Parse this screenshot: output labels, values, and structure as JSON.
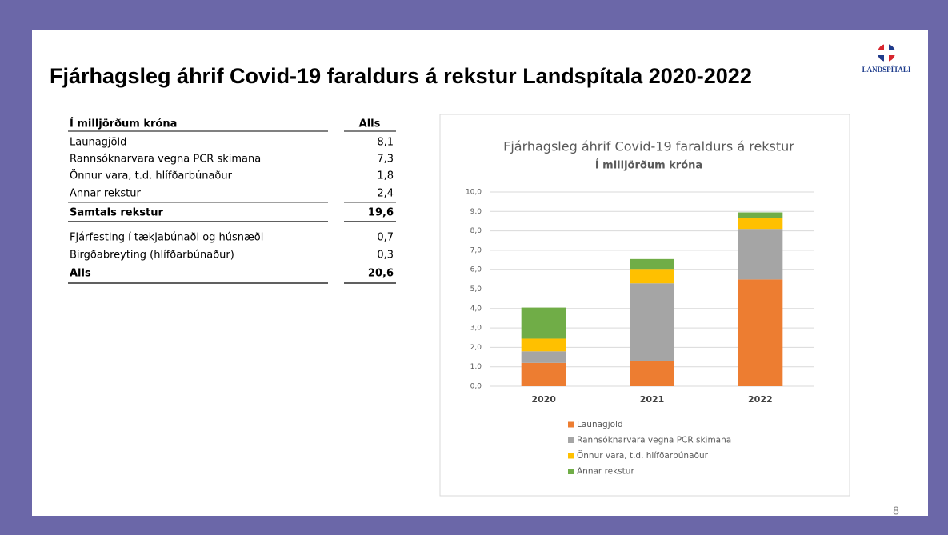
{
  "title": "Fjárhagsleg áhrif Covid-19 faraldurs á rekstur Landspítala 2020-2022",
  "logo": "LANDSPÍTALI",
  "page_number": "8",
  "table": {
    "header": [
      "Í milljörðum króna",
      "Alls"
    ],
    "rows": [
      [
        "Launagjöld",
        "8,1"
      ],
      [
        "Rannsóknarvara vegna PCR skimana",
        "7,3"
      ],
      [
        "Önnur vara, t.d. hlífðarbúnaður",
        "1,8"
      ],
      [
        "Annar rekstur",
        "2,4"
      ],
      [
        "Samtals rekstur",
        "19,6"
      ],
      [
        "Fjárfesting í tækjabúnaði og húsnæði",
        "0,7"
      ],
      [
        "Birgðabreyting (hlífðarbúnaður)",
        "0,3"
      ],
      [
        "Alls",
        "20,6"
      ]
    ]
  },
  "chart_data": {
    "type": "stacked_bar",
    "title": "Fjárhagsleg áhrif Covid-19 faraldurs á rekstur",
    "subtitle": "Í milljörðum króna",
    "categories": [
      "2020",
      "2021",
      "2022"
    ],
    "series": [
      {
        "name": "Launagjöld",
        "color": "#ed7d31",
        "values": [
          1.2,
          1.3,
          5.5
        ]
      },
      {
        "name": "Rannsóknarvara vegna PCR skimana",
        "color": "#a5a5a5",
        "values": [
          0.6,
          4.0,
          2.6
        ]
      },
      {
        "name": "Önnur vara, t.d. hlífðarbúnaður",
        "color": "#ffc000",
        "values": [
          0.65,
          0.7,
          0.55
        ]
      },
      {
        "name": "Annar rekstur",
        "color": "#70ad47",
        "values": [
          1.6,
          0.55,
          0.3
        ]
      }
    ],
    "ylim": [
      0,
      10
    ],
    "yticks": [
      {
        "value": 0,
        "label": "0,0"
      },
      {
        "value": 1,
        "label": "1,0"
      },
      {
        "value": 2,
        "label": "2,0"
      },
      {
        "value": 3,
        "label": "3,0"
      },
      {
        "value": 4,
        "label": "4,0"
      },
      {
        "value": 5,
        "label": "5,0"
      },
      {
        "value": 6,
        "label": "6,0"
      },
      {
        "value": 7,
        "label": "7,0"
      },
      {
        "value": 8,
        "label": "8,0"
      },
      {
        "value": 9,
        "label": "9,0"
      },
      {
        "value": 10,
        "label": "10,0"
      }
    ],
    "grid": true
  }
}
